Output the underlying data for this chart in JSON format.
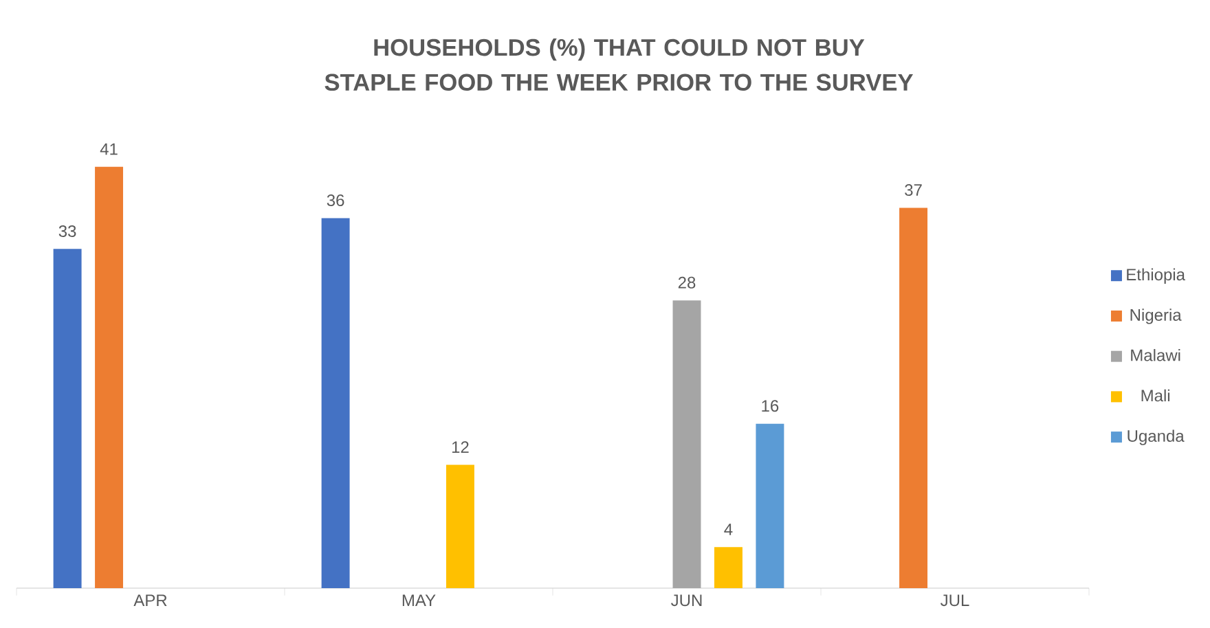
{
  "chart_data": {
    "type": "bar",
    "title": "HOUSEHOLDS (%) THAT COULD NOT BUY STAPLE FOOD THE WEEK PRIOR TO THE SURVEY",
    "categories": [
      "APR",
      "MAY",
      "JUN",
      "JUL"
    ],
    "series": [
      {
        "name": "Ethiopia",
        "color": "#4472c4",
        "values": [
          33,
          36,
          null,
          null
        ]
      },
      {
        "name": "Nigeria",
        "color": "#ed7d31",
        "values": [
          41,
          null,
          null,
          37
        ]
      },
      {
        "name": "Malawi",
        "color": "#a5a5a5",
        "values": [
          null,
          null,
          28,
          null
        ]
      },
      {
        "name": "Mali",
        "color": "#ffc000",
        "values": [
          null,
          12,
          4,
          null
        ]
      },
      {
        "name": "Uganda",
        "color": "#5b9bd5",
        "values": [
          null,
          null,
          16,
          null
        ]
      }
    ],
    "data_labels": true,
    "legend": "right"
  }
}
